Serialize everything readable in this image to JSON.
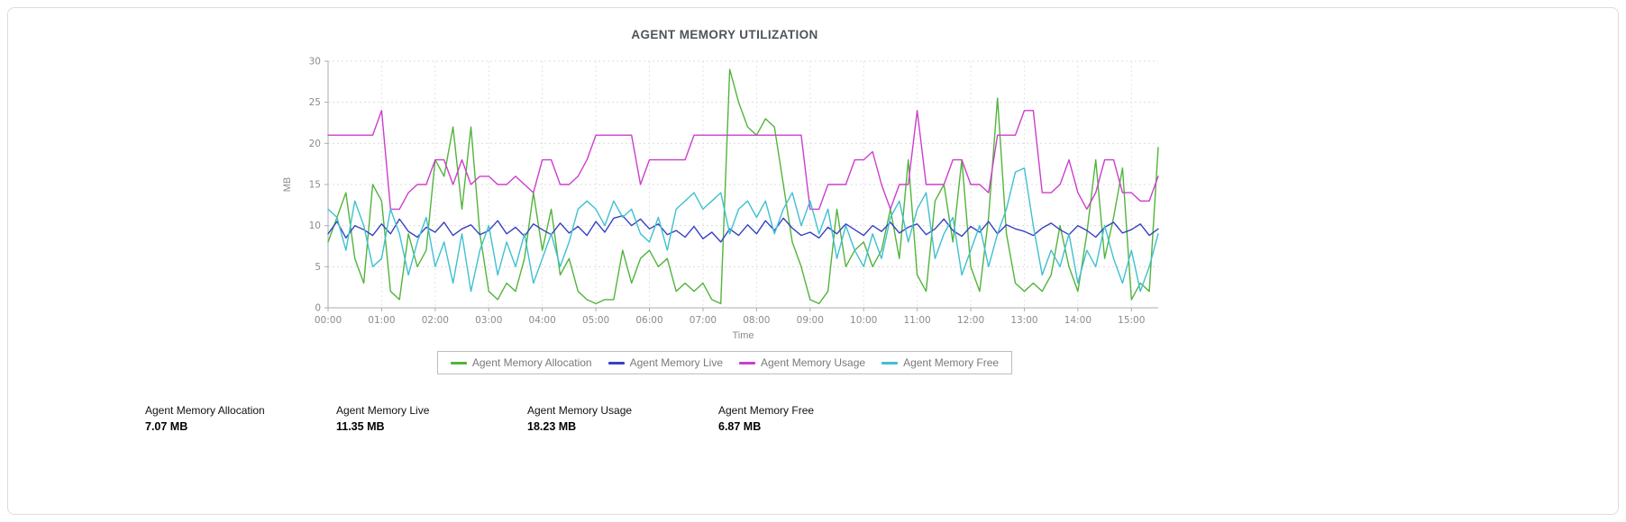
{
  "chart_data": {
    "type": "line",
    "title": "AGENT MEMORY UTILIZATION",
    "xlabel": "Time",
    "ylabel": "MB",
    "ylim": [
      0,
      30
    ],
    "yticks": [
      0,
      5,
      10,
      15,
      20,
      25,
      30
    ],
    "xtick_labels": [
      "00:00",
      "01:00",
      "02:00",
      "03:00",
      "04:00",
      "05:00",
      "06:00",
      "07:00",
      "08:00",
      "09:00",
      "10:00",
      "11:00",
      "12:00",
      "13:00",
      "14:00",
      "15:00"
    ],
    "x_range_hours": [
      0,
      15.5
    ],
    "x_step_hours": 0.1666667,
    "grid": true,
    "legend_position": "bottom",
    "series": [
      {
        "name": "Agent Memory Allocation",
        "color": "#52b43c",
        "values": [
          8,
          11,
          14,
          6,
          3,
          15,
          13,
          2,
          1,
          9,
          5,
          7,
          18,
          16,
          22,
          12,
          22,
          9,
          2,
          1,
          3,
          2,
          6,
          14,
          7,
          12,
          4,
          6,
          2,
          1,
          0.5,
          1,
          1,
          7,
          3,
          6,
          7,
          5,
          6,
          2,
          3,
          2,
          3,
          1,
          0.5,
          29,
          25,
          22,
          21,
          23,
          22,
          15,
          8,
          5,
          1,
          0.5,
          2,
          12,
          5,
          7,
          8,
          5,
          7,
          12,
          6,
          18,
          4,
          2,
          13,
          15,
          8,
          18,
          5,
          2,
          11,
          25.5,
          9,
          3,
          2,
          3,
          2,
          4,
          10,
          5,
          2,
          9,
          18,
          6,
          11,
          17,
          1,
          3,
          2,
          19.5
        ]
      },
      {
        "name": "Agent Memory Live",
        "color": "#3742c1",
        "values": [
          9,
          10.5,
          8.5,
          10,
          9.5,
          8.8,
          10.2,
          9,
          10.8,
          9.3,
          8.6,
          9.8,
          9.2,
          10.4,
          8.8,
          9.6,
          10.1,
          8.9,
          9.4,
          10.6,
          9,
          9.8,
          8.7,
          10.2,
          9.5,
          8.9,
          10.3,
          9.1,
          9.9,
          8.8,
          10.5,
          9.2,
          10.9,
          11.2,
          10,
          10.8,
          9.6,
          10.2,
          8.9,
          9.4,
          8.6,
          9.9,
          8.4,
          9.2,
          8,
          9.6,
          8.8,
          10.1,
          9,
          10.6,
          9.4,
          10.9,
          9.7,
          8.8,
          9.2,
          8.5,
          9.8,
          9,
          10.2,
          9.5,
          8.8,
          10,
          9.3,
          10.4,
          9.1,
          9.8,
          10.2,
          8.9,
          9.6,
          10.8,
          9.4,
          8.7,
          9.9,
          9.2,
          10.5,
          9,
          10.1,
          9.6,
          9.3,
          8.8,
          9.7,
          10.3,
          9.5,
          8.9,
          10,
          9.4,
          8.6,
          9.8,
          10.4,
          9.1,
          9.5,
          10.2,
          8.8,
          9.6
        ]
      },
      {
        "name": "Agent Memory Usage",
        "color": "#cc3ecc",
        "values": [
          21,
          21,
          21,
          21,
          21,
          21,
          24,
          12,
          12,
          14,
          15,
          15,
          18,
          18,
          15,
          18,
          15,
          16,
          16,
          15,
          15,
          16,
          15,
          14,
          18,
          18,
          15,
          15,
          16,
          18,
          21,
          21,
          21,
          21,
          21,
          15,
          18,
          18,
          18,
          18,
          18,
          21,
          21,
          21,
          21,
          21,
          21,
          21,
          21,
          21,
          21,
          21,
          21,
          21,
          12,
          12,
          15,
          15,
          15,
          18,
          18,
          19,
          15,
          12,
          15,
          15,
          24,
          15,
          15,
          15,
          18,
          18,
          15,
          15,
          14,
          21,
          21,
          21,
          24,
          24,
          14,
          14,
          15,
          18,
          14,
          12,
          14,
          18,
          18,
          14,
          14,
          13,
          13,
          16
        ]
      },
      {
        "name": "Agent Memory Free",
        "color": "#3fc0d0",
        "values": [
          12,
          11,
          7,
          13,
          10,
          5,
          6,
          12,
          9,
          4,
          8,
          11,
          5,
          8,
          3,
          9,
          2,
          7,
          10,
          4,
          8,
          5,
          9,
          3,
          6,
          9,
          5,
          8,
          12,
          13,
          12,
          10,
          13,
          11,
          12,
          9,
          8,
          11,
          7,
          12,
          13,
          14,
          12,
          13,
          14,
          9,
          12,
          13,
          11,
          13,
          9,
          12,
          14,
          10,
          13,
          9,
          12,
          6,
          10,
          7,
          5,
          9,
          6,
          11,
          13,
          8,
          12,
          14,
          6,
          9,
          11,
          4,
          7,
          10,
          5,
          9,
          12,
          16.5,
          17,
          10,
          4,
          7,
          5,
          9,
          3,
          7,
          5,
          10,
          6,
          3,
          7,
          2,
          5,
          9
        ]
      }
    ]
  },
  "stats": [
    {
      "label": "Agent Memory Allocation",
      "value": "7.07 MB"
    },
    {
      "label": "Agent Memory Live",
      "value": "11.35 MB"
    },
    {
      "label": "Agent Memory Usage",
      "value": "18.23 MB"
    },
    {
      "label": "Agent Memory Free",
      "value": "6.87 MB"
    }
  ]
}
